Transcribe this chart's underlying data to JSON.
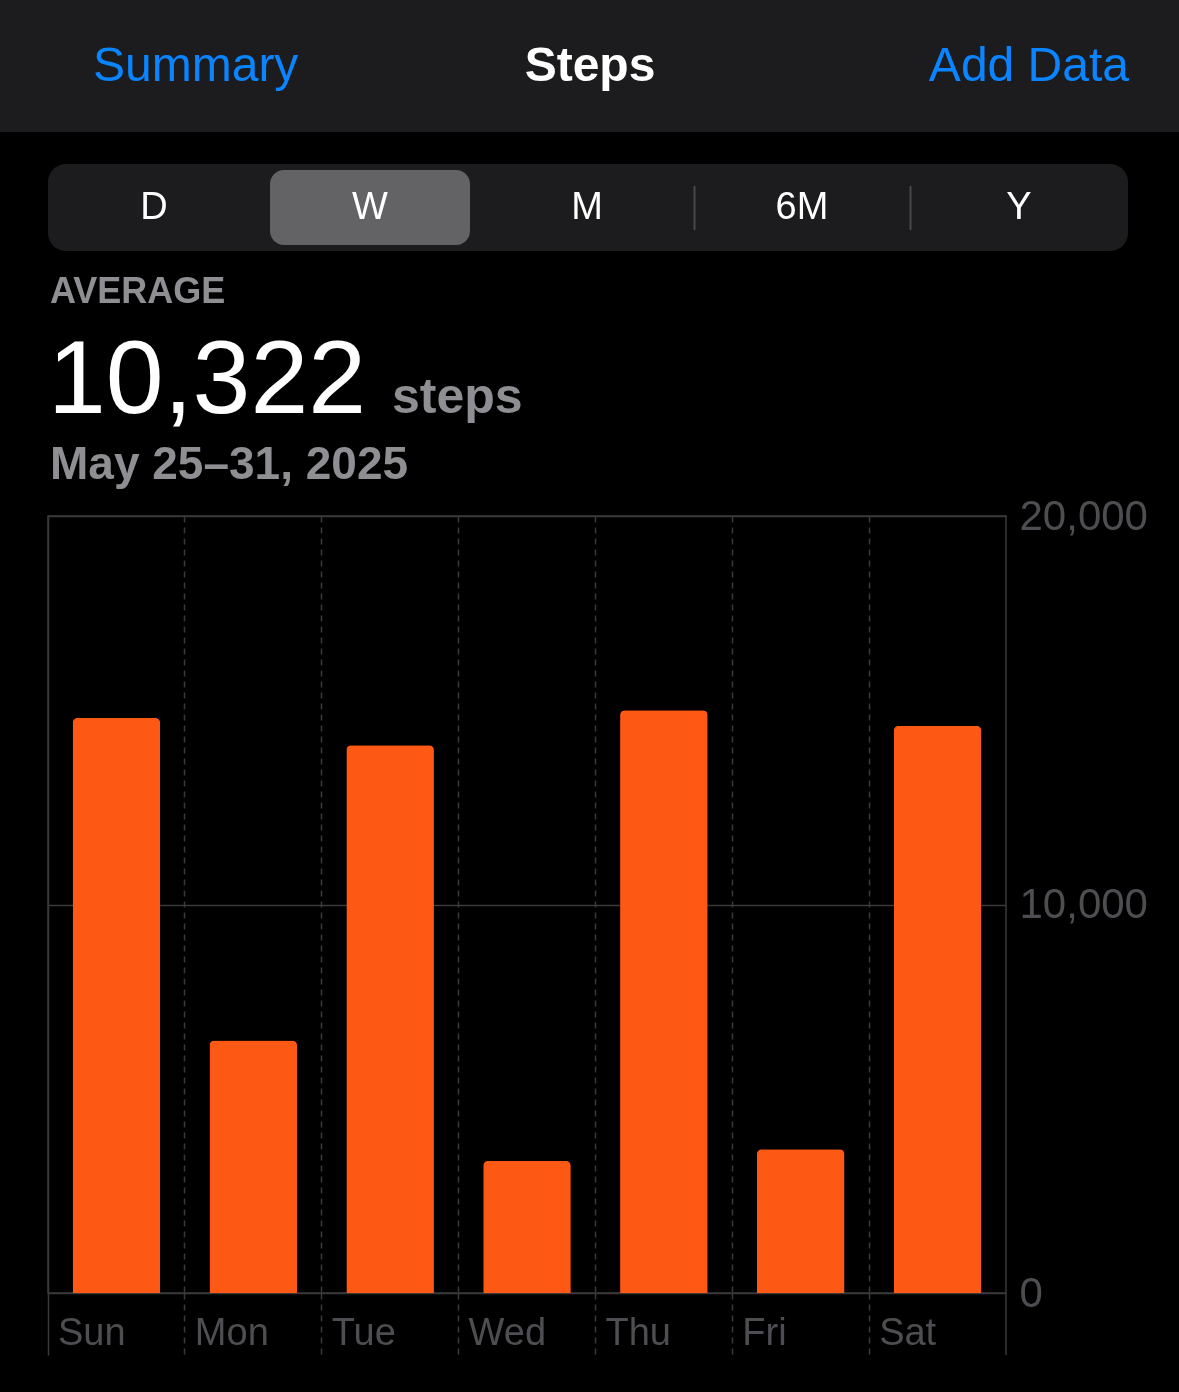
{
  "chart_data": {
    "type": "bar",
    "title": "Steps",
    "subtitle": "May 25–31, 2025",
    "annotations": [
      "Summary",
      "Add Data",
      "D",
      "W",
      "M",
      "6M",
      "Y",
      "AVERAGE",
      "10,322",
      "steps"
    ],
    "categories": [
      "Sun",
      "Mon",
      "Tue",
      "Wed",
      "Thu",
      "Fri",
      "Sat"
    ],
    "values": [
      14800,
      6500,
      14100,
      3400,
      15000,
      3700,
      14600
    ],
    "color": "#fe5815",
    "ylim": [
      0,
      20000
    ],
    "yticks": [
      0,
      {
        "value": 10000,
        "label": "10,000"
      },
      {
        "value": 20000,
        "label": "20,000"
      }
    ],
    "grid": true
  }
}
